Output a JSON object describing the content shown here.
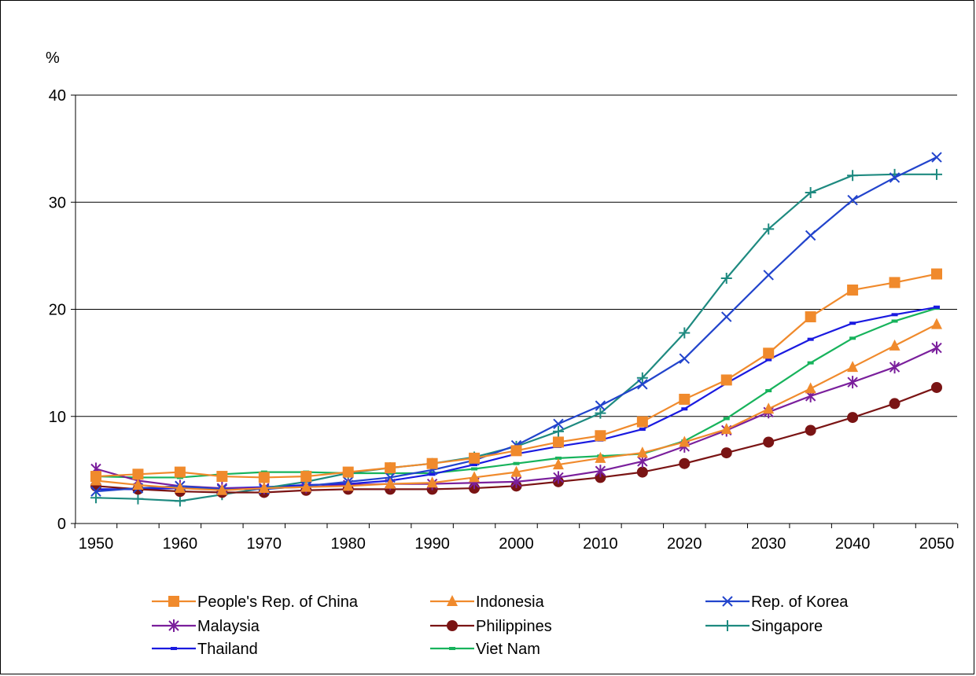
{
  "chart_data": {
    "type": "line",
    "title": "",
    "xlabel": "",
    "ylabel": "%",
    "ylim": [
      0,
      40
    ],
    "xlim": [
      1950,
      2050
    ],
    "y_ticks": [
      0,
      10,
      20,
      30,
      40
    ],
    "x_ticks": [
      1950,
      1960,
      1970,
      1980,
      1990,
      2000,
      2010,
      2020,
      2030,
      2040,
      2050
    ],
    "grid": "horizontal",
    "legend_position": "bottom",
    "x": [
      1950,
      1955,
      1960,
      1965,
      1970,
      1975,
      1980,
      1985,
      1990,
      1995,
      2000,
      2005,
      2010,
      2015,
      2020,
      2025,
      2030,
      2035,
      2040,
      2045,
      2050
    ],
    "series": [
      {
        "name": "People's Rep. of China",
        "color": "#f08a2c",
        "marker": "square",
        "values": [
          4.4,
          4.6,
          4.8,
          4.4,
          4.3,
          4.4,
          4.8,
          5.2,
          5.6,
          6.1,
          6.8,
          7.6,
          8.2,
          9.5,
          11.6,
          13.4,
          15.9,
          19.3,
          21.8,
          22.5,
          23.3
        ]
      },
      {
        "name": "Indonesia",
        "color": "#f08a2c",
        "marker": "triangle",
        "values": [
          4.0,
          3.6,
          3.3,
          3.1,
          3.3,
          3.4,
          3.5,
          3.7,
          3.8,
          4.3,
          4.8,
          5.5,
          6.1,
          6.6,
          7.6,
          8.8,
          10.7,
          12.6,
          14.6,
          16.6,
          18.6
        ]
      },
      {
        "name": "Rep. of Korea",
        "color": "#2244cc",
        "marker": "x",
        "values": [
          3.0,
          3.3,
          3.5,
          3.2,
          3.2,
          3.5,
          3.9,
          4.3,
          5.0,
          5.9,
          7.3,
          9.3,
          11.0,
          13.0,
          15.4,
          19.3,
          23.2,
          26.9,
          30.2,
          32.3,
          34.2
        ]
      },
      {
        "name": "Malaysia",
        "color": "#7a1f9c",
        "marker": "asterisk",
        "values": [
          5.1,
          4.0,
          3.5,
          3.3,
          3.3,
          3.4,
          3.6,
          3.7,
          3.7,
          3.8,
          3.9,
          4.3,
          4.9,
          5.8,
          7.2,
          8.7,
          10.4,
          11.9,
          13.2,
          14.6,
          16.4
        ]
      },
      {
        "name": "Philippines",
        "color": "#7a1414",
        "marker": "circle",
        "values": [
          3.5,
          3.2,
          3.0,
          2.9,
          2.9,
          3.1,
          3.2,
          3.2,
          3.2,
          3.3,
          3.5,
          3.9,
          4.3,
          4.8,
          5.6,
          6.6,
          7.6,
          8.7,
          9.9,
          11.2,
          12.7
        ]
      },
      {
        "name": "Singapore",
        "color": "#1e8a80",
        "marker": "plus",
        "values": [
          2.4,
          2.3,
          2.1,
          2.7,
          3.3,
          3.9,
          4.7,
          5.2,
          5.6,
          6.2,
          7.2,
          8.6,
          10.3,
          13.6,
          17.8,
          22.9,
          27.5,
          30.9,
          32.5,
          32.6,
          32.6
        ]
      },
      {
        "name": "Thailand",
        "color": "#1a1ae0",
        "marker": "dash",
        "values": [
          3.2,
          3.2,
          3.3,
          3.3,
          3.4,
          3.6,
          3.7,
          4.0,
          4.6,
          5.5,
          6.5,
          7.2,
          7.8,
          8.8,
          10.7,
          13.1,
          15.3,
          17.2,
          18.7,
          19.5,
          20.2
        ]
      },
      {
        "name": "Viet Nam",
        "color": "#17b35c",
        "marker": "dash",
        "values": [
          4.4,
          4.3,
          4.3,
          4.6,
          4.8,
          4.8,
          4.7,
          4.7,
          4.7,
          5.1,
          5.6,
          6.1,
          6.3,
          6.5,
          7.7,
          9.8,
          12.4,
          15.0,
          17.3,
          18.9,
          20.1
        ]
      }
    ]
  }
}
